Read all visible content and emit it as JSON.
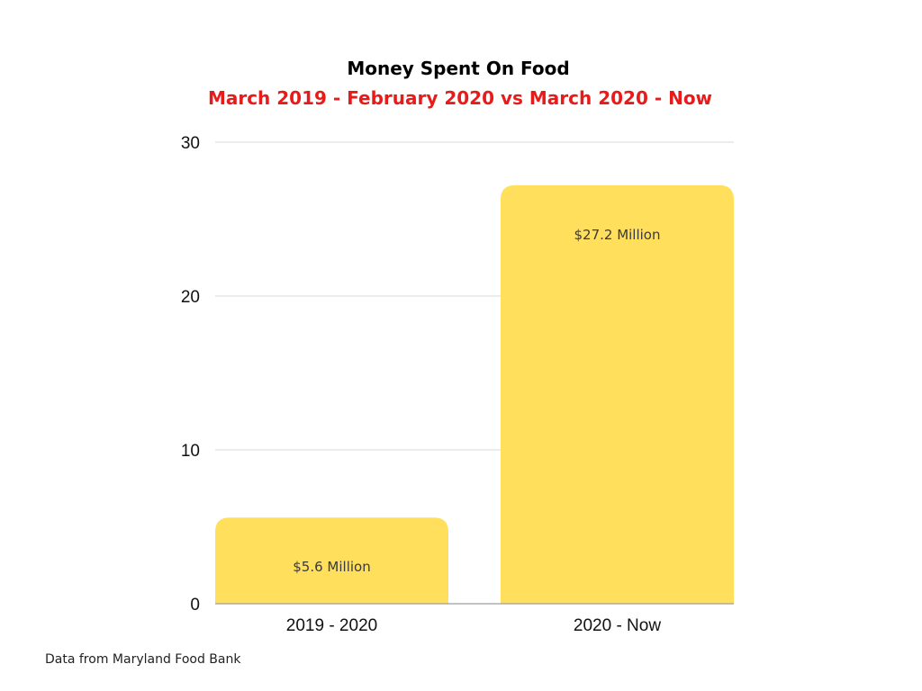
{
  "chart_data": {
    "type": "bar",
    "title": "Money Spent On Food",
    "subtitle": "March 2019 - February 2020 vs March 2020 - Now",
    "categories": [
      "2019 - 2020",
      "2020 - Now"
    ],
    "values": [
      5.6,
      27.2
    ],
    "data_labels": [
      "$5.6 Million",
      "$27.2 Million"
    ],
    "xlabel": "",
    "ylabel": "",
    "ylim": [
      0,
      30
    ],
    "yticks": [
      0,
      10,
      20,
      30
    ],
    "grid": true,
    "legend": "none"
  },
  "footer": {
    "source": "Data from Maryland Food Bank"
  },
  "colors": {
    "bar": "#FFDF5B",
    "subtitle": "#E81B1B",
    "grid": "#D9D9D9",
    "baseline": "#9E9E9E"
  }
}
